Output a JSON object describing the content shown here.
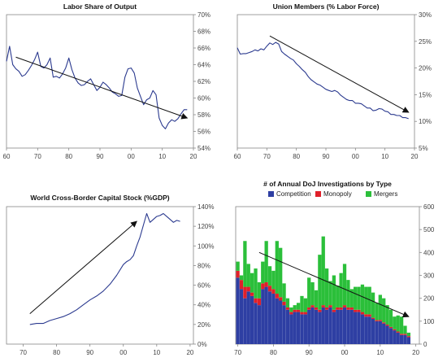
{
  "colors": {
    "line": "#2b3a8f",
    "arrow": "#111111",
    "competition": "#2e3fa3",
    "monopoly": "#e0202a",
    "mergers": "#2bbf3a",
    "frame": "#888888"
  },
  "chart_data": [
    {
      "type": "line",
      "title": "Labor Share of Output",
      "x_ticks": [
        "60",
        "70",
        "80",
        "90",
        "00",
        "10",
        "20"
      ],
      "y_ticks": [
        "54%",
        "56%",
        "58%",
        "60%",
        "62%",
        "64%",
        "66%",
        "68%",
        "70%"
      ],
      "xlim": [
        1960,
        2020
      ],
      "ylim": [
        54,
        70
      ],
      "grid": false,
      "y_axis_side": "right",
      "x": [
        1960,
        1961,
        1962,
        1963,
        1964,
        1965,
        1966,
        1967,
        1968,
        1969,
        1970,
        1971,
        1972,
        1973,
        1974,
        1975,
        1976,
        1977,
        1978,
        1979,
        1980,
        1981,
        1982,
        1983,
        1984,
        1985,
        1986,
        1987,
        1988,
        1989,
        1990,
        1991,
        1992,
        1993,
        1994,
        1995,
        1996,
        1997,
        1998,
        1999,
        2000,
        2001,
        2002,
        2003,
        2004,
        2005,
        2006,
        2007,
        2008,
        2009,
        2010,
        2011,
        2012,
        2013,
        2014,
        2015,
        2016,
        2017,
        2018
      ],
      "values": [
        64.4,
        66.2,
        64.0,
        63.5,
        63.2,
        62.6,
        62.8,
        63.3,
        63.9,
        64.6,
        65.5,
        63.8,
        63.6,
        64.0,
        64.8,
        62.5,
        62.6,
        62.4,
        62.9,
        63.6,
        64.8,
        63.4,
        62.4,
        61.8,
        61.5,
        61.6,
        62.0,
        62.3,
        61.6,
        60.9,
        61.3,
        61.9,
        61.6,
        61.2,
        60.7,
        60.5,
        60.2,
        60.3,
        62.5,
        63.5,
        63.6,
        63.0,
        61.2,
        60.2,
        59.2,
        59.8,
        60.0,
        60.9,
        60.4,
        57.6,
        56.7,
        56.3,
        57.0,
        57.4,
        57.2,
        57.5,
        58.1,
        58.6,
        58.6
      ],
      "arrow": {
        "from": [
          1963,
          64.9
        ],
        "to": [
          2018,
          57.6
        ]
      }
    },
    {
      "type": "line",
      "title": "Union Members (% Labor Force)",
      "x_ticks": [
        "60",
        "70",
        "80",
        "90",
        "00",
        "10",
        "20"
      ],
      "y_ticks": [
        "5%",
        "10%",
        "15%",
        "20%",
        "25%",
        "30%"
      ],
      "xlim": [
        1960,
        2020
      ],
      "ylim": [
        5,
        30
      ],
      "grid": false,
      "y_axis_side": "right",
      "x": [
        1960,
        1961,
        1962,
        1963,
        1964,
        1965,
        1966,
        1967,
        1968,
        1969,
        1970,
        1971,
        1972,
        1973,
        1974,
        1975,
        1976,
        1977,
        1978,
        1979,
        1980,
        1981,
        1982,
        1983,
        1984,
        1985,
        1986,
        1987,
        1988,
        1989,
        1990,
        1991,
        1992,
        1993,
        1994,
        1995,
        1996,
        1997,
        1998,
        1999,
        2000,
        2001,
        2002,
        2003,
        2004,
        2005,
        2006,
        2007,
        2008,
        2009,
        2010,
        2011,
        2012,
        2013,
        2014,
        2015,
        2016,
        2017,
        2018
      ],
      "values": [
        23.8,
        22.6,
        22.7,
        22.7,
        22.9,
        23.1,
        23.4,
        23.2,
        23.6,
        23.4,
        24.1,
        24.7,
        24.4,
        24.8,
        24.5,
        23.1,
        22.6,
        22.2,
        21.8,
        21.5,
        20.8,
        20.3,
        19.7,
        19.2,
        18.4,
        17.8,
        17.4,
        17.0,
        16.8,
        16.4,
        16.0,
        15.8,
        15.6,
        15.8,
        15.5,
        14.9,
        14.5,
        14.1,
        13.9,
        13.9,
        13.4,
        13.4,
        13.3,
        12.9,
        12.5,
        12.5,
        12.0,
        12.1,
        12.4,
        12.3,
        11.9,
        11.8,
        11.3,
        11.3,
        11.1,
        11.1,
        10.7,
        10.7,
        10.5
      ],
      "arrow": {
        "from": [
          1971,
          26.0
        ],
        "to": [
          2018,
          11.7
        ]
      }
    },
    {
      "type": "line",
      "title": "World Cross-Border Capital Stock (%GDP)",
      "x_ticks": [
        "70",
        "80",
        "90",
        "00",
        "10",
        "20"
      ],
      "y_ticks": [
        "0%",
        "20%",
        "40%",
        "60%",
        "80%",
        "100%",
        "120%",
        "140%"
      ],
      "xlim": [
        1965,
        2021
      ],
      "ylim": [
        0,
        140
      ],
      "grid": false,
      "y_axis_side": "right",
      "x": [
        1972,
        1974,
        1976,
        1978,
        1980,
        1982,
        1984,
        1986,
        1988,
        1990,
        1992,
        1994,
        1996,
        1998,
        2000,
        2001,
        2002,
        2003,
        2004,
        2005,
        2006,
        2007,
        2008,
        2009,
        2010,
        2011,
        2012,
        2013,
        2014,
        2015,
        2016,
        2017
      ],
      "values": [
        20,
        21,
        21,
        24,
        26,
        28,
        31,
        35,
        40,
        45,
        49,
        54,
        61,
        70,
        81,
        84,
        86,
        90,
        100,
        109,
        121,
        133,
        124,
        127,
        130,
        131,
        133,
        130,
        127,
        124,
        126,
        125
      ],
      "arrow": {
        "from": [
          1972,
          31
        ],
        "to": [
          2004,
          125
        ]
      }
    },
    {
      "type": "bar",
      "stacked": true,
      "title": "# of Annual DoJ Investigations by Type",
      "legend": [
        "Competition",
        "Monopoly",
        "Mergers"
      ],
      "legend_position": "top",
      "x_ticks": [
        "70",
        "80",
        "90",
        "00",
        "10",
        "20"
      ],
      "y_ticks": [
        "0",
        "100",
        "200",
        "300",
        "400",
        "500",
        "600"
      ],
      "xlim": [
        1969.4,
        2021
      ],
      "ylim": [
        0,
        600
      ],
      "grid": false,
      "y_axis_side": "right",
      "x": [
        1970,
        1971,
        1972,
        1973,
        1974,
        1975,
        1976,
        1977,
        1978,
        1979,
        1980,
        1981,
        1982,
        1983,
        1984,
        1985,
        1986,
        1987,
        1988,
        1989,
        1990,
        1991,
        1992,
        1993,
        1994,
        1995,
        1996,
        1997,
        1998,
        1999,
        2000,
        2001,
        2002,
        2003,
        2004,
        2005,
        2006,
        2007,
        2008,
        2009,
        2010,
        2011,
        2012,
        2013,
        2014,
        2015,
        2016,
        2017,
        2018
      ],
      "series": [
        {
          "name": "Competition",
          "values": [
            290,
            240,
            200,
            230,
            210,
            180,
            170,
            240,
            250,
            230,
            220,
            200,
            190,
            170,
            150,
            130,
            140,
            140,
            130,
            130,
            150,
            160,
            150,
            140,
            160,
            150,
            160,
            140,
            150,
            150,
            160,
            150,
            150,
            140,
            140,
            130,
            120,
            120,
            110,
            100,
            100,
            90,
            80,
            70,
            60,
            50,
            40,
            40,
            30
          ]
        },
        {
          "name": "Monopoly",
          "values": [
            30,
            40,
            50,
            20,
            15,
            20,
            30,
            25,
            20,
            25,
            20,
            20,
            15,
            15,
            10,
            10,
            10,
            10,
            10,
            10,
            10,
            10,
            10,
            10,
            10,
            10,
            10,
            10,
            10,
            10,
            10,
            10,
            10,
            10,
            10,
            10,
            10,
            10,
            5,
            5,
            5,
            5,
            5,
            5,
            5,
            5,
            5,
            5,
            5
          ]
        },
        {
          "name": "Mergers",
          "values": [
            40,
            20,
            200,
            100,
            85,
            130,
            70,
            95,
            180,
            85,
            80,
            230,
            215,
            80,
            40,
            20,
            20,
            30,
            70,
            60,
            130,
            100,
            75,
            240,
            300,
            170,
            105,
            150,
            95,
            150,
            180,
            120,
            80,
            100,
            100,
            120,
            120,
            120,
            110,
            75,
            110,
            105,
            85,
            75,
            55,
            70,
            75,
            35,
            15
          ]
        }
      ],
      "arrow": {
        "from": [
          1976,
          400
        ],
        "to": [
          2018,
          120
        ]
      }
    }
  ]
}
